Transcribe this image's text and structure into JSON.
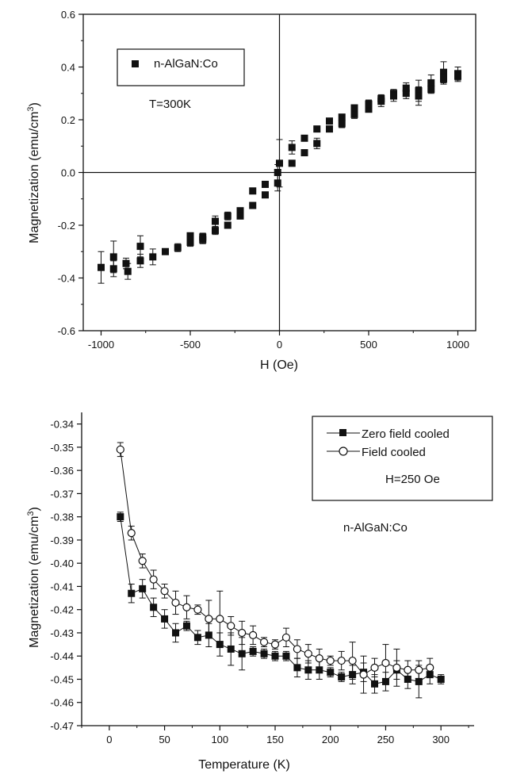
{
  "chart_data": [
    {
      "type": "scatter",
      "xlabel": "H (Oe)",
      "ylabel": "Magnetization (emu/cm",
      "ylabel_sup": "3",
      "ylabel_tail": ")",
      "xlim": [
        -1100,
        1100
      ],
      "ylim": [
        -0.6,
        0.6
      ],
      "x_ticks": [
        -1000,
        -500,
        0,
        500,
        1000
      ],
      "x_tick_labels": [
        "-1000",
        "-500",
        "0",
        "500",
        "1000"
      ],
      "y_ticks": [
        -0.6,
        -0.4,
        -0.2,
        0.0,
        0.2,
        0.4,
        0.6
      ],
      "y_tick_labels": [
        "-0.6",
        "-0.4",
        "-0.2",
        "0.0",
        "0.2",
        "0.4",
        "0.6"
      ],
      "legend": {
        "placement": "top-left",
        "entries": [
          "n-AlGaN:Co"
        ],
        "note": "T=300K"
      },
      "grid": false,
      "zero_lines": true,
      "series": [
        {
          "name": "n-AlGaN:Co",
          "marker": "filled-square",
          "color": "#111111",
          "points": [
            {
              "x": -1000,
              "y": -0.36,
              "e": 0.06
            },
            {
              "x": -930,
              "y": -0.32,
              "e": 0.06
            },
            {
              "x": -930,
              "y": -0.365,
              "e": 0.03
            },
            {
              "x": -860,
              "y": -0.345,
              "e": 0.02
            },
            {
              "x": -850,
              "y": -0.375,
              "e": 0.03
            },
            {
              "x": -780,
              "y": -0.28,
              "e": 0.04
            },
            {
              "x": -780,
              "y": -0.335,
              "e": 0.025
            },
            {
              "x": -710,
              "y": -0.32,
              "e": 0.03
            },
            {
              "x": -640,
              "y": -0.3,
              "e": 0.01
            },
            {
              "x": -570,
              "y": -0.285,
              "e": 0.015
            },
            {
              "x": -500,
              "y": -0.265,
              "e": 0.015
            },
            {
              "x": -500,
              "y": -0.24,
              "e": 0.01
            },
            {
              "x": -430,
              "y": -0.245,
              "e": 0.015
            },
            {
              "x": -430,
              "y": -0.255,
              "e": 0.015
            },
            {
              "x": -360,
              "y": -0.185,
              "e": 0.02
            },
            {
              "x": -360,
              "y": -0.22,
              "e": 0.015
            },
            {
              "x": -290,
              "y": -0.165,
              "e": 0.015
            },
            {
              "x": -290,
              "y": -0.2,
              "e": 0.01
            },
            {
              "x": -220,
              "y": -0.145,
              "e": 0.01
            },
            {
              "x": -220,
              "y": -0.165,
              "e": 0.01
            },
            {
              "x": -150,
              "y": -0.07,
              "e": 0.01
            },
            {
              "x": -150,
              "y": -0.125,
              "e": 0.01
            },
            {
              "x": -80,
              "y": -0.045,
              "e": 0.01
            },
            {
              "x": -80,
              "y": -0.085,
              "e": 0.01
            },
            {
              "x": -10,
              "y": -0.04,
              "e": 0.03
            },
            {
              "x": -10,
              "y": 0.0,
              "e": 0.03
            },
            {
              "x": 0,
              "y": 0.035,
              "e": 0.09
            },
            {
              "x": 70,
              "y": 0.035,
              "e": 0.01
            },
            {
              "x": 70,
              "y": 0.095,
              "e": 0.025
            },
            {
              "x": 140,
              "y": 0.075,
              "e": 0.01
            },
            {
              "x": 140,
              "y": 0.13,
              "e": 0.01
            },
            {
              "x": 210,
              "y": 0.11,
              "e": 0.02
            },
            {
              "x": 210,
              "y": 0.165,
              "e": 0.01
            },
            {
              "x": 280,
              "y": 0.195,
              "e": 0.01
            },
            {
              "x": 280,
              "y": 0.165,
              "e": 0.01
            },
            {
              "x": 350,
              "y": 0.185,
              "e": 0.015
            },
            {
              "x": 350,
              "y": 0.21,
              "e": 0.01
            },
            {
              "x": 420,
              "y": 0.22,
              "e": 0.015
            },
            {
              "x": 420,
              "y": 0.245,
              "e": 0.01
            },
            {
              "x": 500,
              "y": 0.24,
              "e": 0.01
            },
            {
              "x": 500,
              "y": 0.26,
              "e": 0.015
            },
            {
              "x": 570,
              "y": 0.28,
              "e": 0.015
            },
            {
              "x": 570,
              "y": 0.27,
              "e": 0.02
            },
            {
              "x": 640,
              "y": 0.3,
              "e": 0.015
            },
            {
              "x": 640,
              "y": 0.29,
              "e": 0.02
            },
            {
              "x": 710,
              "y": 0.3,
              "e": 0.02
            },
            {
              "x": 710,
              "y": 0.32,
              "e": 0.02
            },
            {
              "x": 780,
              "y": 0.31,
              "e": 0.04
            },
            {
              "x": 780,
              "y": 0.29,
              "e": 0.035
            },
            {
              "x": 850,
              "y": 0.34,
              "e": 0.03
            },
            {
              "x": 850,
              "y": 0.315,
              "e": 0.015
            },
            {
              "x": 920,
              "y": 0.38,
              "e": 0.04
            },
            {
              "x": 920,
              "y": 0.355,
              "e": 0.02
            },
            {
              "x": 1000,
              "y": 0.375,
              "e": 0.025
            },
            {
              "x": 1000,
              "y": 0.365,
              "e": 0.02
            }
          ]
        }
      ]
    },
    {
      "type": "line",
      "xlabel": "Temperature (K)",
      "ylabel": "Magnetization (emu/cm",
      "ylabel_sup": "3",
      "ylabel_tail": ")",
      "xlim": [
        -25,
        330
      ],
      "ylim": [
        -0.47,
        -0.335
      ],
      "x_ticks": [
        0,
        50,
        100,
        150,
        200,
        250,
        300
      ],
      "x_tick_labels": [
        "0",
        "50",
        "100",
        "150",
        "200",
        "250",
        "300"
      ],
      "y_ticks": [
        -0.47,
        -0.46,
        -0.45,
        -0.44,
        -0.43,
        -0.42,
        -0.41,
        -0.4,
        -0.39,
        -0.38,
        -0.37,
        -0.36,
        -0.35,
        -0.34
      ],
      "y_tick_labels": [
        "-0.47",
        "-0.46",
        "-0.45",
        "-0.44",
        "-0.43",
        "-0.42",
        "-0.41",
        "-0.40",
        "-0.39",
        "-0.38",
        "-0.37",
        "-0.36",
        "-0.35",
        "-0.34"
      ],
      "legend": {
        "placement": "top-right",
        "entries": [
          "Zero field cooled",
          "Field cooled"
        ],
        "note": "H=250 Oe"
      },
      "annotation": "n-AlGaN:Co",
      "grid": false,
      "series": [
        {
          "name": "Zero field cooled",
          "marker": "filled-square",
          "color": "#111111",
          "x": [
            10,
            20,
            30,
            40,
            50,
            60,
            70,
            80,
            90,
            100,
            110,
            120,
            130,
            140,
            150,
            160,
            170,
            180,
            190,
            200,
            210,
            220,
            230,
            240,
            250,
            260,
            270,
            280,
            290,
            300
          ],
          "y": [
            -0.38,
            -0.413,
            -0.411,
            -0.419,
            -0.424,
            -0.43,
            -0.427,
            -0.432,
            -0.431,
            -0.435,
            -0.437,
            -0.439,
            -0.438,
            -0.439,
            -0.44,
            -0.44,
            -0.445,
            -0.446,
            -0.446,
            -0.447,
            -0.449,
            -0.448,
            -0.447,
            -0.452,
            -0.451,
            -0.446,
            -0.45,
            -0.451,
            -0.448,
            -0.45
          ],
          "err": [
            0.002,
            0.004,
            0.004,
            0.004,
            0.004,
            0.004,
            0.002,
            0.003,
            0.005,
            0.005,
            0.007,
            0.007,
            0.002,
            0.002,
            0.002,
            0.002,
            0.004,
            0.004,
            0.004,
            0.002,
            0.002,
            0.004,
            0.004,
            0.004,
            0.004,
            0.004,
            0.004,
            0.007,
            0.004,
            0.002
          ]
        },
        {
          "name": "Field cooled",
          "marker": "open-circle",
          "color": "#111111",
          "x": [
            10,
            20,
            30,
            40,
            50,
            60,
            70,
            80,
            90,
            100,
            110,
            120,
            130,
            140,
            150,
            160,
            170,
            180,
            190,
            200,
            210,
            220,
            230,
            240,
            250,
            260,
            270,
            280,
            290
          ],
          "y": [
            -0.351,
            -0.387,
            -0.399,
            -0.407,
            -0.412,
            -0.417,
            -0.419,
            -0.42,
            -0.424,
            -0.424,
            -0.427,
            -0.43,
            -0.431,
            -0.434,
            -0.435,
            -0.432,
            -0.437,
            -0.439,
            -0.441,
            -0.442,
            -0.442,
            -0.442,
            -0.448,
            -0.445,
            -0.443,
            -0.445,
            -0.446,
            -0.446,
            -0.445
          ],
          "err": [
            0.003,
            0.003,
            0.003,
            0.004,
            0.003,
            0.005,
            0.005,
            0.002,
            0.008,
            0.012,
            0.004,
            0.005,
            0.004,
            0.002,
            0.002,
            0.004,
            0.004,
            0.004,
            0.004,
            0.002,
            0.004,
            0.008,
            0.008,
            0.004,
            0.008,
            0.008,
            0.004,
            0.004,
            0.004
          ]
        }
      ]
    }
  ]
}
